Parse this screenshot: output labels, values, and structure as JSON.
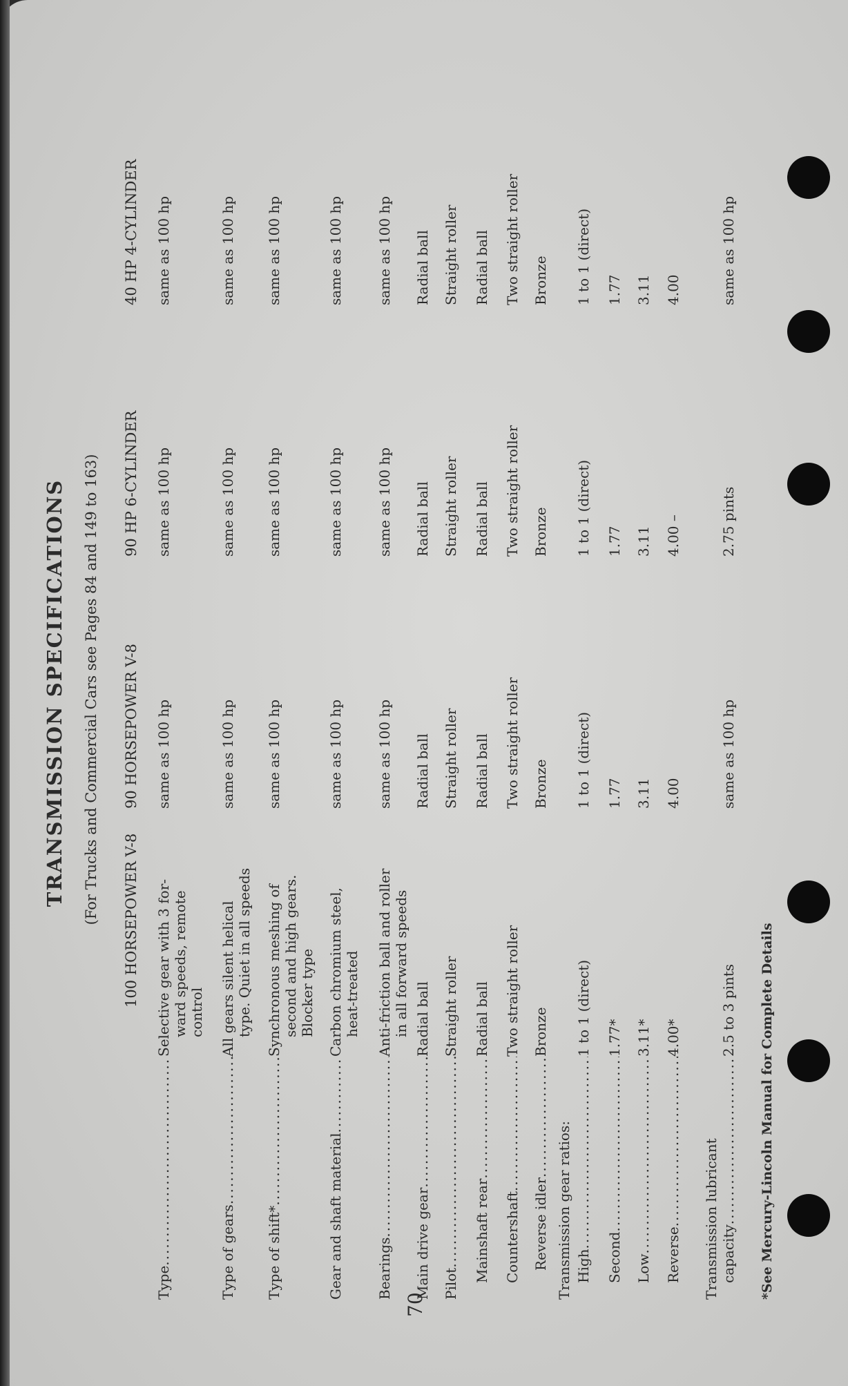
{
  "title": "TRANSMISSION SPECIFICATIONS",
  "subtitle": "(For Trucks and Commercial Cars see Pages 84 and 149 to 163)",
  "columns": [
    "100 HORSEPOWER V-8",
    "90 HORSEPOWER V-8",
    "90 HP 6-CYLINDER",
    "40 HP 4-CYLINDER"
  ],
  "rows": [
    {
      "label": [
        "Type"
      ],
      "values": [
        [
          "Selective gear with 3 for-",
          "ward speeds, remote",
          "control"
        ],
        [
          "same as 100 hp"
        ],
        [
          "same as 100 hp"
        ],
        [
          "same as 100 hp"
        ]
      ]
    },
    {
      "label": [
        "Type of gears"
      ],
      "values": [
        [
          "All gears silent helical",
          "type. Quiet in all speeds"
        ],
        [
          "same as 100 hp"
        ],
        [
          "same as 100 hp"
        ],
        [
          "same as 100 hp"
        ]
      ]
    },
    {
      "label": [
        "Type of shift*"
      ],
      "values": [
        [
          "Synchronous meshing of",
          "second and high gears.",
          "Blocker type"
        ],
        [
          "same as 100 hp"
        ],
        [
          "same as 100 hp"
        ],
        [
          "same as 100 hp"
        ]
      ]
    },
    {
      "label": [
        "Gear and shaft material"
      ],
      "values": [
        [
          "Carbon chromium steel,",
          "heat-treated"
        ],
        [
          "same as 100 hp"
        ],
        [
          "same as 100 hp"
        ],
        [
          "same as 100 hp"
        ]
      ]
    },
    {
      "label": [
        "Bearings"
      ],
      "values": [
        [
          "Anti-friction ball and roller",
          "in all forward speeds"
        ],
        [
          "same as 100 hp"
        ],
        [
          "same as 100 hp"
        ],
        [
          "same as 100 hp"
        ]
      ]
    },
    {
      "label": [
        "Main drive gear"
      ],
      "values": [
        [
          "Radial ball"
        ],
        [
          "Radial ball"
        ],
        [
          "Radial ball"
        ],
        [
          "Radial ball"
        ]
      ]
    },
    {
      "label": [
        "Pilot"
      ],
      "values": [
        [
          "Straight roller"
        ],
        [
          "Straight roller"
        ],
        [
          "Straight roller"
        ],
        [
          "Straight roller"
        ]
      ]
    },
    {
      "label": [
        "Mainshaft rear"
      ],
      "indent": 1,
      "values": [
        [
          "Radial ball"
        ],
        [
          "Radial ball"
        ],
        [
          "Radial ball"
        ],
        [
          "Radial ball"
        ]
      ]
    },
    {
      "label": [
        "Countershaft"
      ],
      "indent": 1,
      "values": [
        [
          "Two straight roller"
        ],
        [
          "Two straight roller"
        ],
        [
          "Two straight roller"
        ],
        [
          "Two straight roller"
        ]
      ]
    },
    {
      "label": [
        "Reverse idler"
      ],
      "indent": 2,
      "values": [
        [
          "Bronze"
        ],
        [
          "Bronze"
        ],
        [
          "Bronze"
        ],
        [
          "Bronze"
        ]
      ]
    },
    {
      "label": [
        "Transmission gear ratios:"
      ],
      "heading": true,
      "values": []
    },
    {
      "label": [
        "High"
      ],
      "indent": 1,
      "values": [
        [
          "1 to 1 (direct)"
        ],
        [
          "1 to 1 (direct)"
        ],
        [
          "1 to 1 (direct)"
        ],
        [
          "1 to 1 (direct)"
        ]
      ]
    },
    {
      "label": [
        "Second"
      ],
      "indent": 1,
      "values": [
        [
          "1.77*"
        ],
        [
          "1.77"
        ],
        [
          "1.77"
        ],
        [
          "1.77"
        ]
      ]
    },
    {
      "label": [
        "Low"
      ],
      "indent": 1,
      "values": [
        [
          "3.11*"
        ],
        [
          "3.11"
        ],
        [
          "3.11"
        ],
        [
          "3.11"
        ]
      ]
    },
    {
      "label": [
        "Reverse"
      ],
      "indent": 1,
      "values": [
        [
          "4.00*"
        ],
        [
          "4.00"
        ],
        [
          "4.00 –"
        ],
        [
          "4.00"
        ]
      ]
    },
    {
      "label": [
        "Transmission lubricant",
        "capacity"
      ],
      "values": [
        [
          "2.5 to 3 pints"
        ],
        [
          "same as 100 hp"
        ],
        [
          "2.75 pints"
        ],
        [
          "same as 100 hp"
        ]
      ]
    }
  ],
  "footnote": "*See Mercury-Lincoln Manual for Complete Details",
  "page_number": "70"
}
